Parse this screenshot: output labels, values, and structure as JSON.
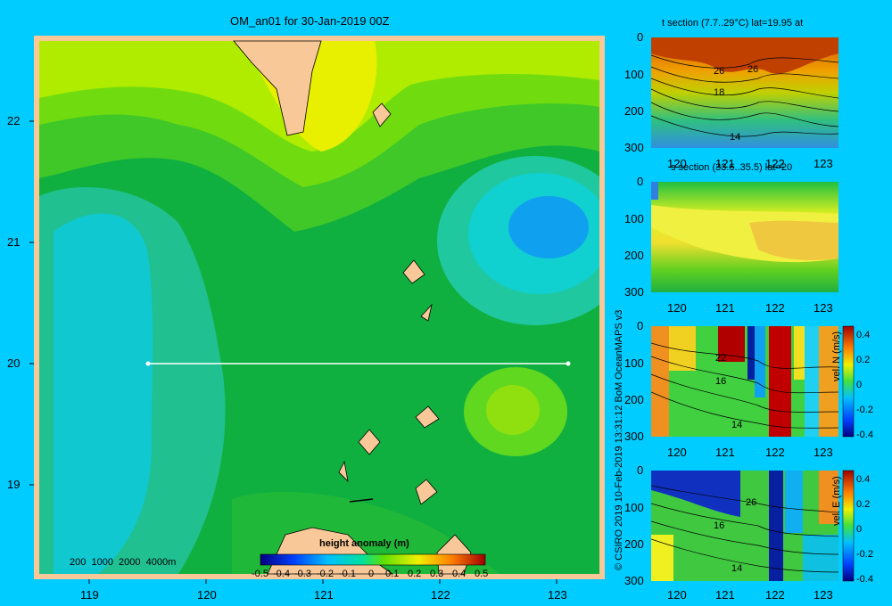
{
  "main_map": {
    "title": "OM_an01 for 30-Jan-2019 00Z",
    "lat_ticks": [
      "22",
      "21",
      "20",
      "19"
    ],
    "lon_ticks": [
      "119",
      "120",
      "121",
      "122",
      "123"
    ],
    "depth_legend": "200  1000  2000  4000m",
    "colorbar_title": "height anomaly (m)",
    "colorbar_ticks": [
      "-0.5",
      "-0.4",
      "-0.3",
      "-0.2",
      "-0.1",
      "0",
      "0.1",
      "0.2",
      "0.3",
      "0.4",
      "0.5"
    ],
    "colors": {
      "land": "#f8c898",
      "frame": "#f8c898"
    }
  },
  "panels": {
    "t_section": {
      "title": "t section (7.7..29°C) lat=19.95 at",
      "contour_labels": [
        "26",
        "26",
        "18",
        "14"
      ]
    },
    "s_section": {
      "title": "s section (33.6..35.5) lat=20"
    },
    "vn_section": {
      "side_label": "vel. N (m/s)",
      "contour_labels": [
        "22",
        "16",
        "14"
      ]
    },
    "ve_section": {
      "side_label": "vel. E (m/s)",
      "contour_labels": [
        "26",
        "16",
        "14"
      ]
    },
    "depth_ticks": [
      "0",
      "100",
      "200",
      "300"
    ],
    "lon_ticks": [
      "120",
      "121",
      "122",
      "123"
    ],
    "vel_ticks": [
      "0.4",
      "0.2",
      "0",
      "-0.2",
      "-0.4"
    ]
  },
  "credit": "© CSIRO 2019  10-Feb-2019 13:31:12 BoM OceanMAPS v3"
}
